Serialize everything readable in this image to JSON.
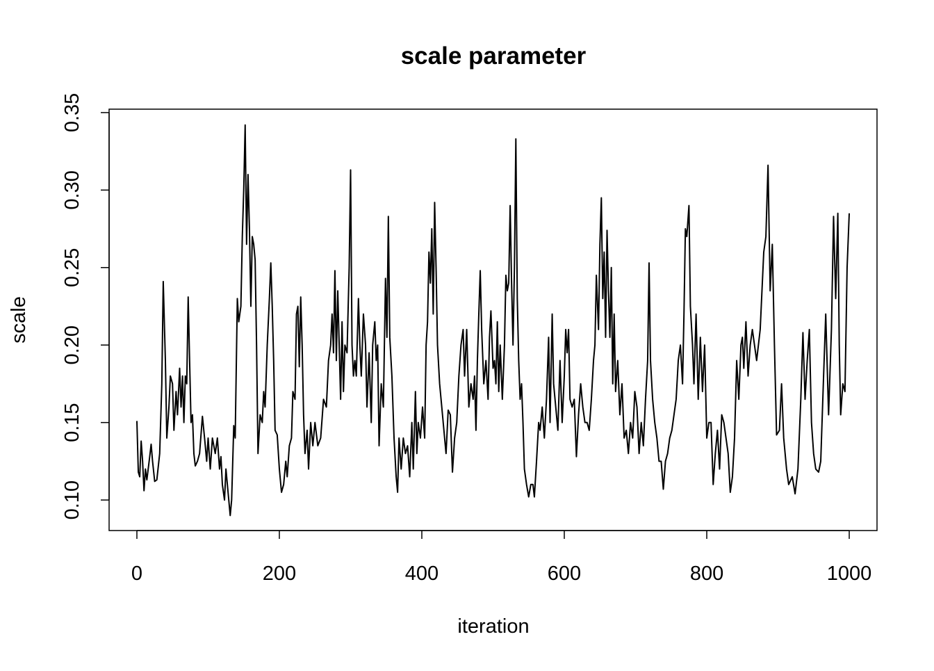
{
  "chart_data": {
    "type": "line",
    "title": "scale parameter",
    "x_label": "iteration",
    "y_label": "scale",
    "color": "#000000",
    "x": [
      0,
      2,
      4,
      6,
      8,
      10,
      12,
      14,
      18,
      20,
      22,
      25,
      28,
      32,
      35,
      37,
      40,
      42,
      45,
      47,
      50,
      52,
      55,
      57,
      60,
      62,
      64,
      66,
      68,
      70,
      72,
      74,
      76,
      78,
      80,
      82,
      85,
      88,
      92,
      95,
      98,
      100,
      103,
      106,
      110,
      113,
      116,
      118,
      120,
      123,
      125,
      128,
      131,
      133,
      136,
      138,
      141,
      143,
      146,
      148,
      150,
      152,
      154,
      156,
      158,
      160,
      162,
      164,
      166,
      168,
      170,
      173,
      176,
      178,
      180,
      183,
      186,
      188,
      190,
      192,
      194,
      197,
      200,
      203,
      206,
      209,
      211,
      214,
      217,
      219,
      222,
      224,
      226,
      228,
      230,
      232,
      234,
      236,
      239,
      241,
      244,
      247,
      250,
      254,
      258,
      262,
      266,
      269,
      272,
      274,
      276,
      278,
      280,
      282,
      284,
      286,
      288,
      290,
      292,
      295,
      298,
      300,
      302,
      304,
      306,
      308,
      311,
      313,
      315,
      318,
      321,
      323,
      326,
      329,
      331,
      334,
      336,
      338,
      340,
      343,
      346,
      349,
      351,
      353,
      355,
      358,
      361,
      364,
      366,
      368,
      371,
      374,
      377,
      380,
      383,
      386,
      388,
      391,
      393,
      395,
      398,
      401,
      404,
      406,
      408,
      410,
      412,
      414,
      416,
      418,
      420,
      422,
      425,
      428,
      431,
      434,
      437,
      440,
      443,
      446,
      449,
      452,
      455,
      458,
      460,
      463,
      466,
      469,
      472,
      474,
      476,
      478,
      480,
      482,
      484,
      487,
      490,
      493,
      495,
      497,
      500,
      502,
      504,
      506,
      508,
      510,
      513,
      516,
      518,
      520,
      522,
      524,
      526,
      528,
      530,
      532,
      534,
      536,
      538,
      540,
      542,
      544,
      547,
      550,
      553,
      556,
      558,
      561,
      564,
      566,
      569,
      572,
      575,
      578,
      580,
      583,
      585,
      588,
      591,
      594,
      597,
      600,
      602,
      604,
      606,
      608,
      611,
      614,
      617,
      620,
      623,
      626,
      629,
      632,
      635,
      638,
      641,
      643,
      645,
      648,
      650,
      652,
      654,
      656,
      658,
      660,
      662,
      664,
      666,
      668,
      670,
      672,
      675,
      678,
      681,
      684,
      687,
      690,
      693,
      696,
      699,
      702,
      705,
      708,
      711,
      714,
      717,
      719,
      721,
      724,
      727,
      730,
      733,
      736,
      739,
      742,
      745,
      748,
      751,
      754,
      757,
      760,
      763,
      766,
      768,
      770,
      772,
      775,
      777,
      780,
      782,
      785,
      788,
      791,
      794,
      797,
      800,
      803,
      806,
      809,
      812,
      815,
      818,
      821,
      824,
      827,
      830,
      833,
      836,
      839,
      842,
      845,
      848,
      850,
      852,
      855,
      858,
      861,
      864,
      870,
      875,
      880,
      883,
      886,
      889,
      892,
      895,
      898,
      902,
      905,
      908,
      912,
      915,
      920,
      924,
      928,
      932,
      935,
      938,
      941,
      944,
      947,
      950,
      953,
      957,
      960,
      964,
      967,
      971,
      975,
      978,
      981,
      984,
      986,
      988,
      991,
      994,
      997,
      1000
    ],
    "values": [
      0.151,
      0.118,
      0.115,
      0.138,
      0.125,
      0.106,
      0.12,
      0.113,
      0.128,
      0.136,
      0.125,
      0.112,
      0.113,
      0.13,
      0.175,
      0.241,
      0.19,
      0.14,
      0.16,
      0.18,
      0.175,
      0.145,
      0.17,
      0.155,
      0.185,
      0.16,
      0.18,
      0.15,
      0.18,
      0.175,
      0.231,
      0.19,
      0.15,
      0.155,
      0.13,
      0.122,
      0.125,
      0.13,
      0.154,
      0.14,
      0.125,
      0.14,
      0.12,
      0.14,
      0.13,
      0.14,
      0.12,
      0.128,
      0.11,
      0.1,
      0.12,
      0.105,
      0.09,
      0.1,
      0.148,
      0.14,
      0.23,
      0.215,
      0.225,
      0.27,
      0.3,
      0.342,
      0.265,
      0.31,
      0.275,
      0.225,
      0.27,
      0.265,
      0.255,
      0.2,
      0.13,
      0.155,
      0.15,
      0.17,
      0.16,
      0.2,
      0.23,
      0.253,
      0.225,
      0.19,
      0.145,
      0.142,
      0.12,
      0.105,
      0.11,
      0.125,
      0.115,
      0.135,
      0.14,
      0.17,
      0.165,
      0.22,
      0.225,
      0.186,
      0.231,
      0.2,
      0.155,
      0.13,
      0.145,
      0.12,
      0.15,
      0.135,
      0.15,
      0.135,
      0.14,
      0.165,
      0.16,
      0.19,
      0.2,
      0.22,
      0.195,
      0.248,
      0.19,
      0.235,
      0.2,
      0.165,
      0.215,
      0.17,
      0.2,
      0.195,
      0.25,
      0.313,
      0.2,
      0.18,
      0.19,
      0.18,
      0.23,
      0.2,
      0.18,
      0.22,
      0.2,
      0.16,
      0.195,
      0.15,
      0.2,
      0.215,
      0.19,
      0.2,
      0.135,
      0.175,
      0.16,
      0.243,
      0.205,
      0.283,
      0.205,
      0.18,
      0.14,
      0.115,
      0.105,
      0.14,
      0.12,
      0.14,
      0.13,
      0.135,
      0.115,
      0.15,
      0.12,
      0.17,
      0.13,
      0.15,
      0.14,
      0.16,
      0.14,
      0.2,
      0.215,
      0.26,
      0.24,
      0.275,
      0.22,
      0.292,
      0.25,
      0.2,
      0.175,
      0.16,
      0.145,
      0.13,
      0.158,
      0.155,
      0.118,
      0.14,
      0.15,
      0.18,
      0.2,
      0.21,
      0.18,
      0.21,
      0.16,
      0.175,
      0.165,
      0.18,
      0.145,
      0.19,
      0.22,
      0.248,
      0.21,
      0.175,
      0.19,
      0.165,
      0.205,
      0.222,
      0.185,
      0.19,
      0.175,
      0.215,
      0.17,
      0.2,
      0.165,
      0.2,
      0.245,
      0.235,
      0.24,
      0.29,
      0.24,
      0.2,
      0.25,
      0.333,
      0.23,
      0.19,
      0.165,
      0.175,
      0.15,
      0.12,
      0.11,
      0.102,
      0.11,
      0.11,
      0.102,
      0.125,
      0.15,
      0.145,
      0.16,
      0.14,
      0.165,
      0.205,
      0.15,
      0.22,
      0.175,
      0.16,
      0.145,
      0.19,
      0.15,
      0.18,
      0.21,
      0.195,
      0.21,
      0.165,
      0.16,
      0.165,
      0.128,
      0.155,
      0.175,
      0.16,
      0.15,
      0.15,
      0.145,
      0.165,
      0.19,
      0.2,
      0.245,
      0.21,
      0.265,
      0.295,
      0.23,
      0.26,
      0.205,
      0.274,
      0.235,
      0.205,
      0.25,
      0.175,
      0.22,
      0.17,
      0.19,
      0.155,
      0.175,
      0.14,
      0.145,
      0.13,
      0.15,
      0.14,
      0.17,
      0.16,
      0.13,
      0.15,
      0.135,
      0.165,
      0.19,
      0.253,
      0.19,
      0.165,
      0.15,
      0.14,
      0.125,
      0.125,
      0.107,
      0.125,
      0.13,
      0.14,
      0.145,
      0.155,
      0.165,
      0.19,
      0.2,
      0.175,
      0.22,
      0.275,
      0.27,
      0.29,
      0.225,
      0.2,
      0.175,
      0.22,
      0.165,
      0.205,
      0.17,
      0.2,
      0.14,
      0.15,
      0.15,
      0.11,
      0.13,
      0.145,
      0.12,
      0.155,
      0.15,
      0.14,
      0.13,
      0.105,
      0.115,
      0.14,
      0.19,
      0.165,
      0.2,
      0.205,
      0.185,
      0.215,
      0.18,
      0.2,
      0.21,
      0.19,
      0.21,
      0.26,
      0.27,
      0.316,
      0.235,
      0.265,
      0.2,
      0.142,
      0.145,
      0.175,
      0.14,
      0.12,
      0.11,
      0.115,
      0.104,
      0.12,
      0.165,
      0.208,
      0.165,
      0.19,
      0.21,
      0.15,
      0.13,
      0.12,
      0.118,
      0.125,
      0.18,
      0.22,
      0.155,
      0.21,
      0.283,
      0.23,
      0.285,
      0.2,
      0.155,
      0.175,
      0.17,
      0.25,
      0.285
    ],
    "xlim": [
      -39,
      1039
    ],
    "ylim": [
      0.0803,
      0.3522
    ],
    "xticks": [
      0,
      200,
      400,
      600,
      800,
      1000
    ],
    "yticks": [
      {
        "value": 0.1,
        "label": "0.10"
      },
      0.15,
      {
        "value": 0.2,
        "label": "0.20"
      },
      0.25,
      {
        "value": 0.3,
        "label": "0.30"
      },
      0.35
    ]
  }
}
